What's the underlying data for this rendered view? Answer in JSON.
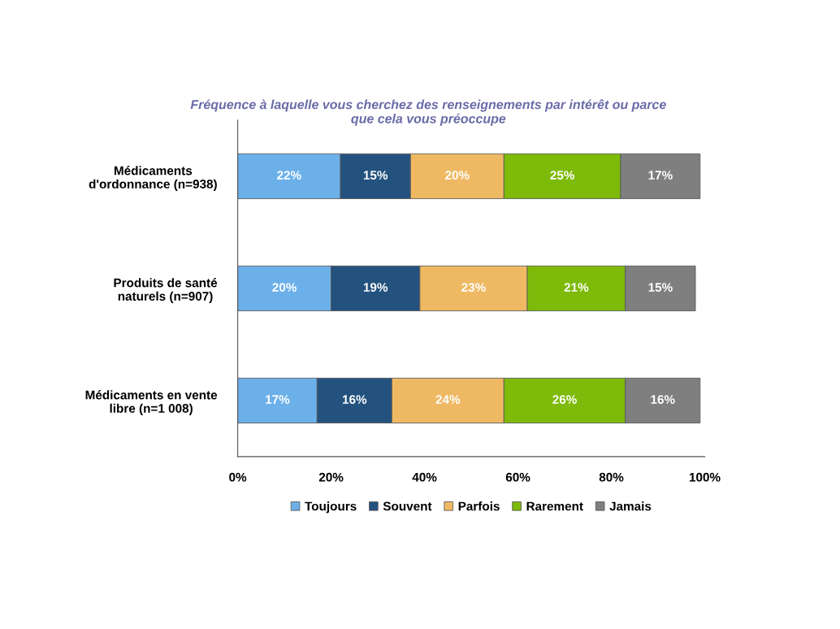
{
  "chart_data": {
    "type": "bar",
    "orientation": "horizontal",
    "stacked": true,
    "title": "Fréquence à laquelle vous cherchez des renseignements par intérêt ou parce\nque cela vous préoccupe",
    "categories": [
      "Médicaments\nd'ordonnance (n=938)",
      "Produits de santé\nnaturels (n=907)",
      "Médicaments en vente\nlibre (n=1 008)"
    ],
    "series": [
      {
        "name": "Toujours",
        "color": "#6cb0ea",
        "values": [
          22,
          20,
          17
        ],
        "value_labels": [
          "22%",
          "20%",
          "17%"
        ]
      },
      {
        "name": "Souvent",
        "color": "#24527e",
        "values": [
          15,
          19,
          16
        ],
        "value_labels": [
          "15%",
          "19%",
          "16%"
        ]
      },
      {
        "name": "Parfois",
        "color": "#efb964",
        "values": [
          20,
          23,
          24
        ],
        "value_labels": [
          "20%",
          "23%",
          "24%"
        ]
      },
      {
        "name": "Rarement",
        "color": "#7dba0a",
        "values": [
          25,
          21,
          26
        ],
        "value_labels": [
          "25%",
          "21%",
          "26%"
        ]
      },
      {
        "name": "Jamais",
        "color": "#7f7f7f",
        "values": [
          17,
          15,
          16
        ],
        "value_labels": [
          "17%",
          "15%",
          "16%"
        ]
      }
    ],
    "xlim": [
      0,
      100
    ],
    "xticks": [
      {
        "value": 0,
        "label": "0%"
      },
      {
        "value": 20,
        "label": "20%"
      },
      {
        "value": 40,
        "label": "40%"
      },
      {
        "value": 60,
        "label": "60%"
      },
      {
        "value": 80,
        "label": "80%"
      },
      {
        "value": 100,
        "label": "100%"
      }
    ],
    "grid": false,
    "legend": "bottom"
  }
}
